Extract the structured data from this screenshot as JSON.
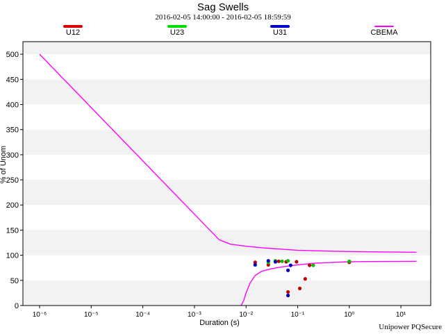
{
  "chart_data": {
    "type": "scatter",
    "title": "Sag Swells",
    "subtitle": "2016-02-05 14:00:00  -  2016-02-05 18:59:59",
    "xlabel": "Duration (s)",
    "ylabel": "% of Unom",
    "x_scale": "log",
    "xlim": [
      1e-06,
      20
    ],
    "ylim": [
      0,
      525
    ],
    "x_ticks": [
      {
        "value": 1e-06,
        "label": "10⁻⁶"
      },
      {
        "value": 1e-05,
        "label": "10⁻⁵"
      },
      {
        "value": 0.0001,
        "label": "10⁻⁴"
      },
      {
        "value": 0.001,
        "label": "10⁻³"
      },
      {
        "value": 0.01,
        "label": "10⁻²"
      },
      {
        "value": 0.1,
        "label": "10⁻¹"
      },
      {
        "value": 1,
        "label": "10⁰"
      },
      {
        "value": 10,
        "label": "10¹"
      }
    ],
    "y_ticks": [
      0,
      50,
      100,
      150,
      200,
      250,
      300,
      350,
      400,
      450,
      500
    ],
    "series": [
      {
        "name": "U12",
        "color": "#c00000",
        "points": [
          [
            0.015,
            86
          ],
          [
            0.027,
            81
          ],
          [
            0.043,
            88
          ],
          [
            0.06,
            87
          ],
          [
            0.065,
            27
          ],
          [
            0.095,
            87
          ],
          [
            0.11,
            34
          ],
          [
            0.14,
            53
          ],
          [
            0.17,
            80
          ],
          [
            1.0,
            86
          ]
        ]
      },
      {
        "name": "U23",
        "color": "#00c000",
        "points": [
          [
            0.027,
            86
          ],
          [
            0.037,
            89
          ],
          [
            0.05,
            88
          ],
          [
            0.065,
            89
          ],
          [
            0.2,
            80
          ],
          [
            1.0,
            88
          ]
        ]
      },
      {
        "name": "U31",
        "color": "#0000c0",
        "points": [
          [
            0.015,
            81
          ],
          [
            0.027,
            89
          ],
          [
            0.037,
            87
          ],
          [
            0.065,
            70
          ],
          [
            0.065,
            20
          ],
          [
            0.073,
            80
          ]
        ]
      }
    ],
    "reference_curves": [
      {
        "name": "CBEMA",
        "color": "#ff00ff",
        "kind": "upper",
        "points": [
          [
            1e-06,
            500
          ],
          [
            0.003,
            131
          ],
          [
            0.005,
            122
          ],
          [
            0.01,
            118
          ],
          [
            0.02,
            115
          ],
          [
            0.05,
            112
          ],
          [
            0.1,
            110
          ],
          [
            0.5,
            108
          ],
          [
            2,
            107
          ],
          [
            20,
            106
          ]
        ]
      },
      {
        "name": "CBEMA",
        "color": "#ff00ff",
        "kind": "lower",
        "points": [
          [
            0.008,
            0
          ],
          [
            0.009,
            10
          ],
          [
            0.01,
            25
          ],
          [
            0.012,
            45
          ],
          [
            0.015,
            60
          ],
          [
            0.02,
            68
          ],
          [
            0.03,
            73
          ],
          [
            0.05,
            77
          ],
          [
            0.1,
            81
          ],
          [
            0.2,
            84
          ],
          [
            0.5,
            86
          ],
          [
            1,
            87
          ],
          [
            2,
            87.5
          ],
          [
            20,
            88
          ]
        ]
      }
    ],
    "grid": "horizontal-bands",
    "legend_position": "top"
  },
  "legend": [
    {
      "label": "U12",
      "color": "#dd0000",
      "style": "thick"
    },
    {
      "label": "U23",
      "color": "#00dd00",
      "style": "thick"
    },
    {
      "label": "U31",
      "color": "#0000cc",
      "style": "thick"
    },
    {
      "label": "CBEMA",
      "color": "#ff00ff",
      "style": "thin"
    }
  ],
  "footer": "Unipower PQSecure"
}
